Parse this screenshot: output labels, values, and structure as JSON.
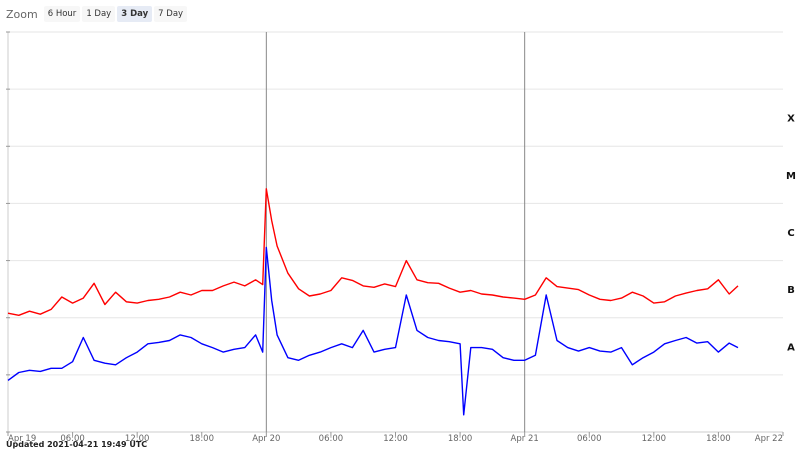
{
  "zoom": {
    "label": "Zoom",
    "options": [
      "6 Hour",
      "1 Day",
      "3 Day",
      "7 Day"
    ],
    "active": "3 Day"
  },
  "updated": "Updated 2021-04-21 19:49 UTC",
  "chart_data": {
    "type": "line",
    "title": "",
    "xlabel": "",
    "ylabel": "",
    "x_range": [
      "2021-04-19 00:00",
      "2021-04-22 00:00"
    ],
    "x_ticks": [
      {
        "t": "2021-04-19 00:00",
        "label": "Apr 19"
      },
      {
        "t": "2021-04-19 06:00",
        "label": "06:00"
      },
      {
        "t": "2021-04-19 12:00",
        "label": "12:00"
      },
      {
        "t": "2021-04-19 18:00",
        "label": "18:00"
      },
      {
        "t": "2021-04-20 00:00",
        "label": "Apr 20"
      },
      {
        "t": "2021-04-20 06:00",
        "label": "06:00"
      },
      {
        "t": "2021-04-20 12:00",
        "label": "12:00"
      },
      {
        "t": "2021-04-20 18:00",
        "label": "18:00"
      },
      {
        "t": "2021-04-21 00:00",
        "label": "Apr 21"
      },
      {
        "t": "2021-04-21 06:00",
        "label": "06:00"
      },
      {
        "t": "2021-04-21 12:00",
        "label": "12:00"
      },
      {
        "t": "2021-04-21 18:00",
        "label": "18:00"
      },
      {
        "t": "2021-04-22 00:00",
        "label": "Apr 22"
      }
    ],
    "y_scale": "log",
    "y_range": [
      1e-09,
      0.01
    ],
    "y_gridlines": [
      1e-09,
      1e-08,
      1e-07,
      1e-06,
      1e-05,
      0.0001,
      0.001,
      0.01
    ],
    "class_labels": [
      {
        "label": "A",
        "y": 3.16e-08
      },
      {
        "label": "B",
        "y": 3.16e-07
      },
      {
        "label": "C",
        "y": 3.16e-06
      },
      {
        "label": "M",
        "y": 3.16e-05
      },
      {
        "label": "X",
        "y": 0.000316
      }
    ],
    "day_markers": [
      "2021-04-20 00:00",
      "2021-04-21 00:00"
    ],
    "grid": true,
    "legend": "none",
    "series": [
      {
        "color": "#ff0000",
        "x": [
          "2021-04-19 00:00",
          "2021-04-19 01:00",
          "2021-04-19 02:00",
          "2021-04-19 03:00",
          "2021-04-19 04:00",
          "2021-04-19 05:00",
          "2021-04-19 06:00",
          "2021-04-19 07:00",
          "2021-04-19 08:00",
          "2021-04-19 09:00",
          "2021-04-19 10:00",
          "2021-04-19 11:00",
          "2021-04-19 12:00",
          "2021-04-19 13:00",
          "2021-04-19 14:00",
          "2021-04-19 15:00",
          "2021-04-19 16:00",
          "2021-04-19 17:00",
          "2021-04-19 18:00",
          "2021-04-19 19:00",
          "2021-04-19 20:00",
          "2021-04-19 21:00",
          "2021-04-19 22:00",
          "2021-04-19 23:00",
          "2021-04-19 23:40",
          "2021-04-20 00:00",
          "2021-04-20 00:30",
          "2021-04-20 01:00",
          "2021-04-20 02:00",
          "2021-04-20 03:00",
          "2021-04-20 04:00",
          "2021-04-20 05:00",
          "2021-04-20 06:00",
          "2021-04-20 07:00",
          "2021-04-20 08:00",
          "2021-04-20 09:00",
          "2021-04-20 10:00",
          "2021-04-20 11:00",
          "2021-04-20 12:00",
          "2021-04-20 13:00",
          "2021-04-20 14:00",
          "2021-04-20 15:00",
          "2021-04-20 16:00",
          "2021-04-20 17:00",
          "2021-04-20 18:00",
          "2021-04-20 19:00",
          "2021-04-20 20:00",
          "2021-04-20 21:00",
          "2021-04-20 22:00",
          "2021-04-20 23:00",
          "2021-04-21 00:00",
          "2021-04-21 01:00",
          "2021-04-21 02:00",
          "2021-04-21 03:00",
          "2021-04-21 04:00",
          "2021-04-21 05:00",
          "2021-04-21 06:00",
          "2021-04-21 07:00",
          "2021-04-21 08:00",
          "2021-04-21 09:00",
          "2021-04-21 10:00",
          "2021-04-21 11:00",
          "2021-04-21 12:00",
          "2021-04-21 13:00",
          "2021-04-21 14:00",
          "2021-04-21 15:00",
          "2021-04-21 16:00",
          "2021-04-21 17:00",
          "2021-04-21 18:00",
          "2021-04-21 19:00",
          "2021-04-21 19:49"
        ],
        "y": [
          1.2e-07,
          1.1e-07,
          1.3e-07,
          1.15e-07,
          1.4e-07,
          2.3e-07,
          1.8e-07,
          2.2e-07,
          4e-07,
          1.7e-07,
          2.8e-07,
          1.9e-07,
          1.8e-07,
          2e-07,
          2.1e-07,
          2.3e-07,
          2.8e-07,
          2.5e-07,
          3e-07,
          3e-07,
          3.6e-07,
          4.2e-07,
          3.6e-07,
          4.6e-07,
          3.8e-07,
          1.8e-05,
          5e-06,
          1.8e-06,
          6e-07,
          3.2e-07,
          2.4e-07,
          2.6e-07,
          3e-07,
          5e-07,
          4.5e-07,
          3.6e-07,
          3.4e-07,
          3.9e-07,
          3.5e-07,
          1e-06,
          4.6e-07,
          4.1e-07,
          4e-07,
          3.3e-07,
          2.8e-07,
          3e-07,
          2.6e-07,
          2.5e-07,
          2.3e-07,
          2.2e-07,
          2.1e-07,
          2.5e-07,
          5e-07,
          3.5e-07,
          3.3e-07,
          3.1e-07,
          2.5e-07,
          2.1e-07,
          2e-07,
          2.2e-07,
          2.8e-07,
          2.4e-07,
          1.8e-07,
          1.9e-07,
          2.4e-07,
          2.7e-07,
          3e-07,
          3.2e-07,
          4.6e-07,
          2.6e-07,
          3.6e-07
        ]
      },
      {
        "color": "#0000ff",
        "x": [
          "2021-04-19 00:00",
          "2021-04-19 01:00",
          "2021-04-19 02:00",
          "2021-04-19 03:00",
          "2021-04-19 04:00",
          "2021-04-19 05:00",
          "2021-04-19 06:00",
          "2021-04-19 07:00",
          "2021-04-19 08:00",
          "2021-04-19 09:00",
          "2021-04-19 10:00",
          "2021-04-19 11:00",
          "2021-04-19 12:00",
          "2021-04-19 13:00",
          "2021-04-19 14:00",
          "2021-04-19 15:00",
          "2021-04-19 16:00",
          "2021-04-19 17:00",
          "2021-04-19 18:00",
          "2021-04-19 19:00",
          "2021-04-19 20:00",
          "2021-04-19 21:00",
          "2021-04-19 22:00",
          "2021-04-19 23:00",
          "2021-04-19 23:40",
          "2021-04-20 00:00",
          "2021-04-20 00:30",
          "2021-04-20 01:00",
          "2021-04-20 02:00",
          "2021-04-20 03:00",
          "2021-04-20 04:00",
          "2021-04-20 05:00",
          "2021-04-20 06:00",
          "2021-04-20 07:00",
          "2021-04-20 08:00",
          "2021-04-20 09:00",
          "2021-04-20 10:00",
          "2021-04-20 11:00",
          "2021-04-20 12:00",
          "2021-04-20 13:00",
          "2021-04-20 14:00",
          "2021-04-20 15:00",
          "2021-04-20 16:00",
          "2021-04-20 17:00",
          "2021-04-20 18:00",
          "2021-04-20 18:20",
          "2021-04-20 19:00",
          "2021-04-20 20:00",
          "2021-04-20 21:00",
          "2021-04-20 22:00",
          "2021-04-20 23:00",
          "2021-04-21 00:00",
          "2021-04-21 01:00",
          "2021-04-21 02:00",
          "2021-04-21 03:00",
          "2021-04-21 04:00",
          "2021-04-21 05:00",
          "2021-04-21 06:00",
          "2021-04-21 07:00",
          "2021-04-21 08:00",
          "2021-04-21 09:00",
          "2021-04-21 10:00",
          "2021-04-21 11:00",
          "2021-04-21 12:00",
          "2021-04-21 13:00",
          "2021-04-21 14:00",
          "2021-04-21 15:00",
          "2021-04-21 16:00",
          "2021-04-21 17:00",
          "2021-04-21 18:00",
          "2021-04-21 19:00",
          "2021-04-21 19:49"
        ],
        "y": [
          8e-09,
          1.1e-08,
          1.2e-08,
          1.15e-08,
          1.3e-08,
          1.3e-08,
          1.7e-08,
          4.5e-08,
          1.8e-08,
          1.6e-08,
          1.5e-08,
          2e-08,
          2.5e-08,
          3.5e-08,
          3.7e-08,
          4e-08,
          5e-08,
          4.5e-08,
          3.5e-08,
          3e-08,
          2.5e-08,
          2.8e-08,
          3e-08,
          5e-08,
          2.5e-08,
          1.7e-06,
          2e-07,
          5e-08,
          2e-08,
          1.8e-08,
          2.2e-08,
          2.5e-08,
          3e-08,
          3.5e-08,
          3e-08,
          6e-08,
          2.5e-08,
          2.8e-08,
          3e-08,
          2.5e-07,
          6e-08,
          4.5e-08,
          4e-08,
          3.8e-08,
          3.5e-08,
          2e-09,
          3e-08,
          3e-08,
          2.8e-08,
          2e-08,
          1.8e-08,
          1.8e-08,
          2.2e-08,
          2.5e-07,
          4e-08,
          3e-08,
          2.6e-08,
          3e-08,
          2.6e-08,
          2.5e-08,
          3e-08,
          1.5e-08,
          2e-08,
          2.5e-08,
          3.5e-08,
          4e-08,
          4.5e-08,
          3.6e-08,
          3.8e-08,
          2.5e-08,
          3.6e-08,
          3e-08
        ]
      }
    ]
  }
}
